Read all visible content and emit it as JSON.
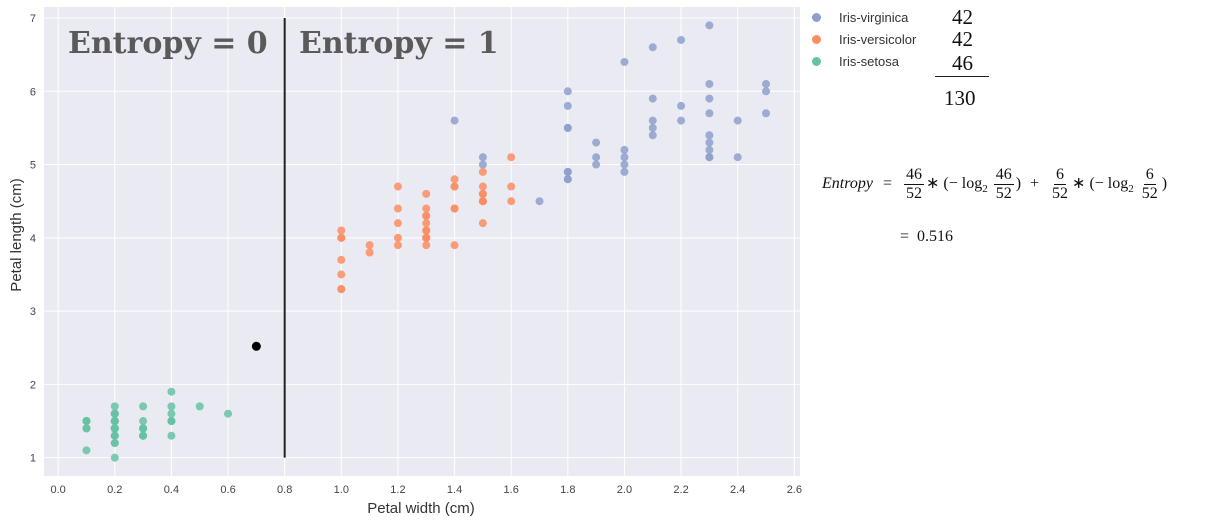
{
  "chart_data": {
    "type": "scatter",
    "xlabel": "Petal width (cm)",
    "ylabel": "Petal length (cm)",
    "xlim": [
      -0.05,
      2.62
    ],
    "ylim": [
      0.75,
      7.15
    ],
    "xticks": [
      "0.0",
      "0.2",
      "0.4",
      "0.6",
      "0.8",
      "1.0",
      "1.2",
      "1.4",
      "1.6",
      "1.8",
      "2.0",
      "2.2",
      "2.4",
      "2.6"
    ],
    "yticks": [
      "1",
      "2",
      "3",
      "4",
      "5",
      "6",
      "7"
    ],
    "grid": true,
    "legend_position": "outside-right",
    "split_line_x": 0.8,
    "regions": [
      {
        "label": "Entropy = 0"
      },
      {
        "label": "Entropy = 1"
      }
    ],
    "highlight_point": {
      "x": 0.7,
      "y": 2.52
    },
    "series": [
      {
        "name": "Iris-virginica",
        "color": "#8da0cb",
        "x": [
          2.3,
          2.2,
          2.1,
          2.0,
          2.5,
          2.5,
          2.3,
          2.3,
          1.4,
          1.5,
          1.5,
          1.8,
          1.8,
          1.8,
          1.8,
          1.9,
          1.9,
          1.9,
          2.0,
          2.0,
          2.0,
          2.0,
          2.1,
          2.1,
          2.1,
          2.1,
          2.2,
          2.2,
          2.3,
          2.3,
          2.3,
          2.3,
          2.3,
          2.3,
          2.4,
          2.4,
          1.7,
          1.8,
          1.8,
          2.5,
          1.8,
          1.8
        ],
        "y": [
          6.9,
          6.7,
          6.6,
          6.4,
          6.1,
          6.0,
          6.1,
          5.9,
          5.6,
          5.1,
          5.0,
          6.0,
          5.8,
          5.5,
          5.5,
          5.3,
          5.1,
          5.0,
          5.2,
          5.1,
          5.0,
          4.9,
          5.9,
          5.6,
          5.5,
          5.4,
          5.8,
          5.6,
          5.7,
          5.4,
          5.3,
          5.2,
          5.1,
          5.1,
          5.6,
          5.1,
          4.5,
          4.9,
          4.8,
          5.7,
          4.9,
          4.8
        ]
      },
      {
        "name": "Iris-versicolor",
        "color": "#fc8d62",
        "x": [
          1.0,
          1.0,
          1.0,
          1.0,
          1.0,
          1.0,
          1.1,
          1.1,
          1.2,
          1.2,
          1.2,
          1.2,
          1.2,
          1.3,
          1.3,
          1.3,
          1.3,
          1.3,
          1.3,
          1.3,
          1.3,
          1.3,
          1.4,
          1.4,
          1.4,
          1.4,
          1.4,
          1.4,
          1.5,
          1.5,
          1.5,
          1.5,
          1.5,
          1.5,
          1.5,
          1.6,
          1.6,
          1.6,
          1.0,
          1.3,
          1.3,
          1.5
        ],
        "y": [
          4.1,
          4.0,
          3.7,
          3.5,
          3.3,
          3.3,
          3.9,
          3.8,
          4.7,
          4.4,
          4.2,
          4.0,
          3.9,
          4.6,
          4.4,
          4.3,
          4.2,
          4.1,
          4.0,
          4.0,
          4.0,
          3.9,
          4.8,
          4.7,
          4.7,
          4.4,
          4.4,
          3.9,
          4.9,
          4.7,
          4.6,
          4.5,
          4.5,
          4.2,
          4.5,
          5.1,
          4.7,
          4.5,
          4.0,
          4.3,
          4.1,
          4.6
        ]
      },
      {
        "name": "Iris-setosa",
        "color": "#66c2a5",
        "x": [
          0.1,
          0.1,
          0.1,
          0.1,
          0.1,
          0.2,
          0.2,
          0.2,
          0.2,
          0.2,
          0.2,
          0.2,
          0.2,
          0.2,
          0.2,
          0.2,
          0.2,
          0.2,
          0.3,
          0.3,
          0.3,
          0.3,
          0.3,
          0.3,
          0.4,
          0.4,
          0.4,
          0.4,
          0.4,
          0.4,
          0.5,
          0.6,
          0.2,
          0.2,
          0.2,
          0.2,
          0.2,
          0.3,
          0.1,
          0.2,
          0.2,
          0.3,
          0.4,
          0.2,
          0.2,
          0.2
        ],
        "y": [
          1.5,
          1.5,
          1.4,
          1.4,
          1.1,
          1.7,
          1.6,
          1.6,
          1.5,
          1.5,
          1.5,
          1.4,
          1.4,
          1.4,
          1.3,
          1.3,
          1.2,
          1.0,
          1.7,
          1.5,
          1.4,
          1.4,
          1.3,
          1.3,
          1.9,
          1.7,
          1.6,
          1.5,
          1.5,
          1.3,
          1.7,
          1.6,
          1.5,
          1.4,
          1.3,
          1.2,
          1.6,
          1.4,
          1.5,
          1.5,
          1.4,
          1.3,
          1.5,
          1.6,
          1.4,
          1.5
        ]
      }
    ]
  },
  "counts": {
    "virginica": "42",
    "versicolor": "42",
    "setosa": "46",
    "total": "130"
  },
  "formula": {
    "lhs": "Entropy",
    "eq": "=",
    "frac1_num": "46",
    "frac1_den": "52",
    "log_open": "∗ (− log",
    "log_base": "2",
    "inner1_num": "46",
    "inner1_den": "52",
    "plus": "+",
    "frac2_num": "6",
    "frac2_den": "52",
    "inner2_num": "6",
    "inner2_den": "52",
    "close": ")",
    "result_eq": "=",
    "result": "0.516"
  }
}
